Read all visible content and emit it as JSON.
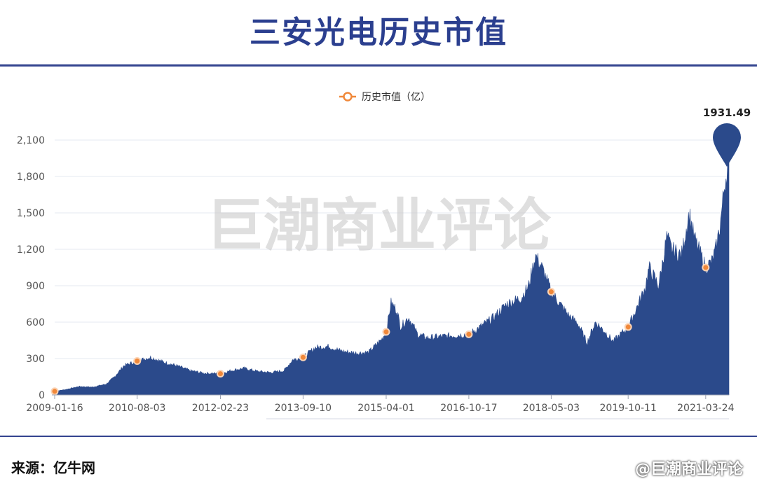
{
  "header": {
    "title": "三安光电历史市值"
  },
  "footer": {
    "source": "来源：亿牛网",
    "credit": "@巨潮商业评论"
  },
  "watermark": "巨潮商业评论",
  "colors": {
    "area": "#2b4a8b",
    "marker": "#f0883a",
    "pin": "#2b4a8b",
    "grid": "#e6e9f2"
  },
  "chart_data": {
    "type": "area",
    "legend": "历史市值（亿）",
    "ylim": [
      0,
      2100
    ],
    "yticks": [
      0,
      300,
      600,
      900,
      1200,
      1500,
      1800,
      2100
    ],
    "ytick_labels": [
      "0",
      "300",
      "600",
      "900",
      "1,200",
      "1,500",
      "1,800",
      "2,100"
    ],
    "xticks": [
      "2009-01-16",
      "2010-08-03",
      "2012-02-23",
      "2013-09-10",
      "2015-04-01",
      "2016-10-17",
      "2018-05-03",
      "2019-10-11",
      "2021-03-24"
    ],
    "max_label": "1931.49",
    "series": [
      {
        "x": [
          "2009-01-16",
          "2009-04-01",
          "2009-07-01",
          "2009-10-01",
          "2010-01-04",
          "2010-03-01",
          "2010-05-03",
          "2010-08-03",
          "2010-11-01",
          "2011-02-01",
          "2011-05-03",
          "2011-08-01",
          "2011-11-01",
          "2012-02-23",
          "2012-05-02",
          "2012-08-01",
          "2012-11-01",
          "2013-02-01",
          "2013-05-02",
          "2013-07-01",
          "2013-09-10",
          "2013-12-02",
          "2014-03-03",
          "2014-06-03",
          "2014-09-01",
          "2014-12-01",
          "2015-03-02",
          "2015-04-01",
          "2015-05-04",
          "2015-06-12",
          "2015-07-08",
          "2015-09-01",
          "2015-11-02",
          "2016-01-04",
          "2016-04-01",
          "2016-07-01",
          "2016-10-17",
          "2017-01-03",
          "2017-04-05",
          "2017-07-03",
          "2017-10-09",
          "2017-12-01",
          "2018-01-15",
          "2018-03-01",
          "2018-05-03",
          "2018-07-02",
          "2018-09-03",
          "2018-11-01",
          "2019-01-03",
          "2019-03-01",
          "2019-05-06",
          "2019-07-01",
          "2019-10-11",
          "2019-12-02",
          "2020-02-03",
          "2020-03-02",
          "2020-05-06",
          "2020-07-01",
          "2020-08-03",
          "2020-10-09",
          "2020-12-01",
          "2021-01-04",
          "2021-03-24",
          "2021-05-06",
          "2021-06-01",
          "2021-07-01",
          "2021-08-02",
          "2021-08-30"
        ],
        "y": [
          30,
          45,
          70,
          65,
          90,
          150,
          240,
          280,
          310,
          270,
          240,
          200,
          180,
          175,
          200,
          220,
          195,
          185,
          200,
          290,
          310,
          390,
          400,
          360,
          345,
          350,
          460,
          520,
          760,
          700,
          560,
          640,
          500,
          470,
          480,
          490,
          500,
          560,
          640,
          750,
          800,
          900,
          1150,
          1050,
          850,
          750,
          650,
          590,
          430,
          600,
          520,
          440,
          560,
          700,
          880,
          1050,
          900,
          1300,
          1200,
          1150,
          1500,
          1300,
          1050,
          1100,
          1200,
          1400,
          1750,
          1931.49
        ]
      }
    ],
    "markers": [
      {
        "x": "2009-01-16",
        "y": 30
      },
      {
        "x": "2010-08-03",
        "y": 280
      },
      {
        "x": "2012-02-23",
        "y": 175
      },
      {
        "x": "2013-09-10",
        "y": 310
      },
      {
        "x": "2015-04-01",
        "y": 520
      },
      {
        "x": "2016-10-17",
        "y": 500
      },
      {
        "x": "2018-05-03",
        "y": 850
      },
      {
        "x": "2019-10-11",
        "y": 560
      },
      {
        "x": "2021-03-24",
        "y": 1050
      }
    ]
  }
}
